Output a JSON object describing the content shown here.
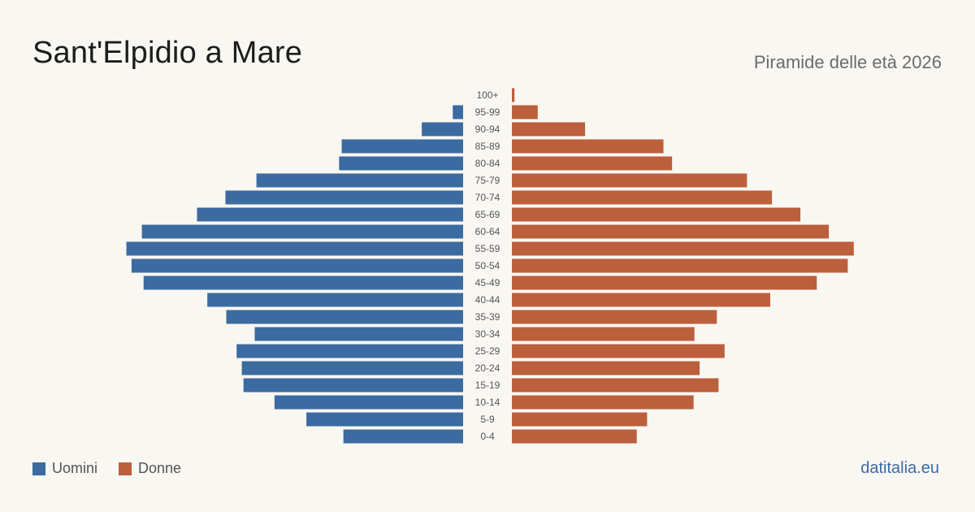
{
  "title": "Sant'Elpidio a Mare",
  "subtitle": "Piramide delle età 2026",
  "brand": "datitalia.eu",
  "colors": {
    "men": "#3b6ba0",
    "women": "#bc5f3d",
    "background": "#f9f7f2"
  },
  "legend": [
    {
      "key": "men",
      "label": "Uomini"
    },
    {
      "key": "women",
      "label": "Donne"
    }
  ],
  "chart_data": {
    "type": "bar",
    "orientation": "horizontal-pyramid",
    "categories": [
      "100+",
      "95-99",
      "90-94",
      "85-89",
      "80-84",
      "75-79",
      "70-74",
      "65-69",
      "60-64",
      "55-59",
      "50-54",
      "45-49",
      "40-44",
      "35-39",
      "30-34",
      "25-29",
      "20-24",
      "15-19",
      "10-14",
      "5-9",
      "0-4"
    ],
    "series": [
      {
        "name": "Uomini",
        "values": [
          0,
          12,
          48,
          141,
          144,
          240,
          276,
          309,
          373,
          391,
          385,
          371,
          297,
          275,
          242,
          263,
          257,
          255,
          219,
          182,
          139
        ]
      },
      {
        "name": "Donne",
        "values": [
          3,
          30,
          85,
          176,
          186,
          273,
          302,
          335,
          368,
          397,
          390,
          354,
          300,
          238,
          212,
          247,
          218,
          240,
          211,
          157,
          145
        ]
      }
    ],
    "xlim": [
      0,
      400
    ],
    "grid": false,
    "legend_position": "bottom-left"
  }
}
